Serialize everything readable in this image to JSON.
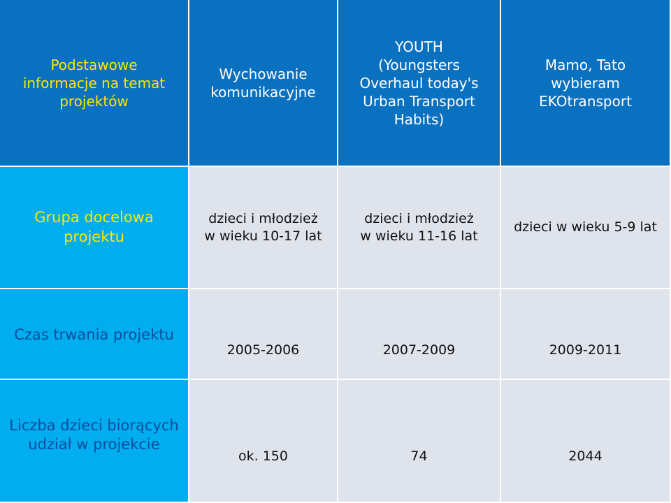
{
  "table": {
    "header": {
      "corner": "Podstawowe\ninformacje na temat\nprojektów",
      "projects": [
        "Wychowanie\nkomunikacyjne",
        "YOUTH\n(Youngsters\nOverhaul today's\nUrban Transport\nHabits)",
        "Mamo, Tato\nwybieram\nEKOtransport"
      ]
    },
    "rows": [
      {
        "label": "Grupa docelowa\nprojektu",
        "values": [
          "dzieci i młodzież\nw wieku 10-17 lat",
          "dzieci i młodzież\nw wieku 11-16 lat",
          "dzieci w wieku 5-9 lat"
        ]
      },
      {
        "label": "Czas trwania projektu",
        "values": [
          "2005-2006",
          "2007-2009",
          "2009-2011"
        ]
      },
      {
        "label": "Liczba dzieci biorących\nudział w projekcie",
        "values": [
          "ok. 150",
          "74",
          "2044"
        ]
      }
    ]
  },
  "colors": {
    "header_bg": "#0a70c0",
    "rowhead_bg": "#00adef",
    "body_bg": "#dfe4ec",
    "accent_yellow": "#ffe800",
    "label_blue": "#0a4ea0"
  }
}
